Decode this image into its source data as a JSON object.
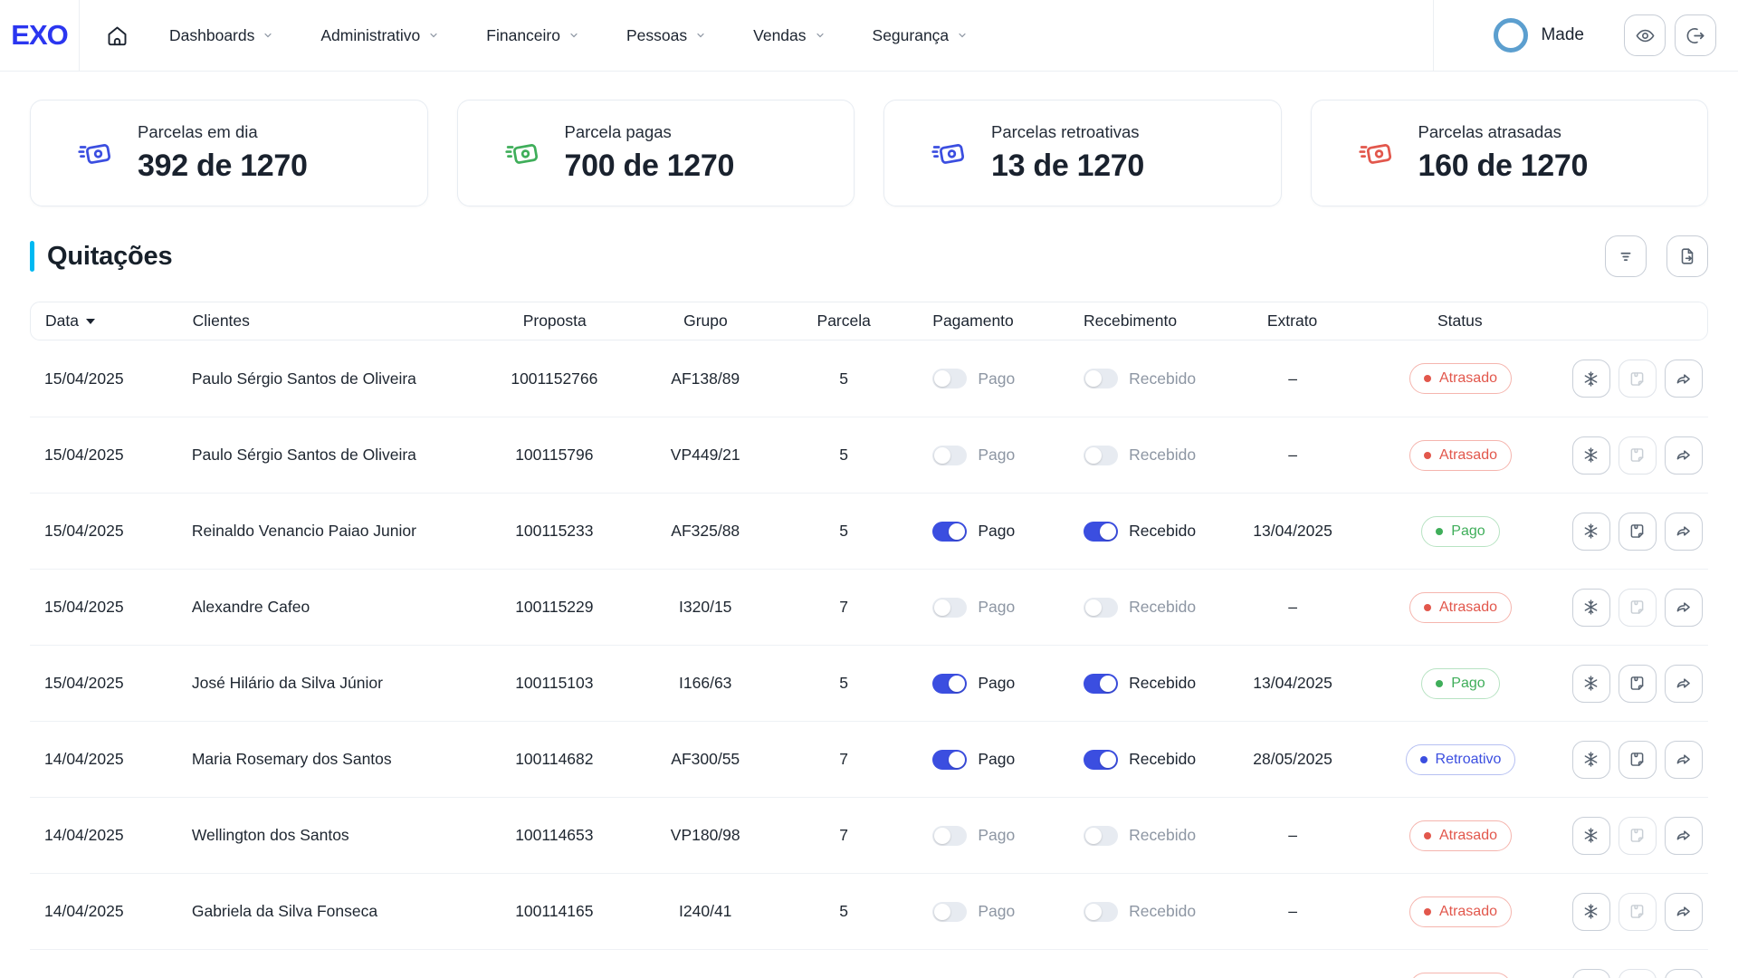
{
  "nav": {
    "logo": "EXO",
    "items": [
      {
        "label": "Dashboards"
      },
      {
        "label": "Administrativo"
      },
      {
        "label": "Financeiro"
      },
      {
        "label": "Pessoas"
      },
      {
        "label": "Vendas"
      },
      {
        "label": "Segurança"
      }
    ],
    "user": {
      "name": "Made"
    }
  },
  "cards": [
    {
      "label": "Parcelas em dia",
      "value": "392 de 1270",
      "color": "#3b4ee0"
    },
    {
      "label": "Parcela pagas",
      "value": "700 de 1270",
      "color": "#3fae5a"
    },
    {
      "label": "Parcelas retroativas",
      "value": "13 de 1270",
      "color": "#3b4ee0"
    },
    {
      "label": "Parcelas atrasadas",
      "value": "160 de 1270",
      "color": "#e2574c"
    }
  ],
  "section": {
    "title": "Quitações"
  },
  "table": {
    "columns": [
      "Data",
      "Clientes",
      "Proposta",
      "Grupo",
      "Parcela",
      "Pagamento",
      "Recebimento",
      "Extrato",
      "Status"
    ],
    "toggle_labels": {
      "pago": "Pago",
      "recebido": "Recebido"
    },
    "status_styles": {
      "Atrasado": {
        "text": "#e2574c",
        "border": "#f5b5ae"
      },
      "Pago": {
        "text": "#3fae5a",
        "border": "#b8e3c3"
      },
      "Retroativo": {
        "text": "#3b4ee0",
        "border": "#b6c0f2"
      }
    },
    "rows": [
      {
        "date": "15/04/2025",
        "client": "Paulo Sérgio Santos de Oliveira",
        "proposal": "1001152766",
        "group": "AF138/89",
        "installment": "5",
        "paid": false,
        "received": false,
        "extract": "–",
        "status": "Atrasado"
      },
      {
        "date": "15/04/2025",
        "client": "Paulo Sérgio Santos de Oliveira",
        "proposal": "100115796",
        "group": "VP449/21",
        "installment": "5",
        "paid": false,
        "received": false,
        "extract": "–",
        "status": "Atrasado"
      },
      {
        "date": "15/04/2025",
        "client": "Reinaldo Venancio Paiao Junior",
        "proposal": "100115233",
        "group": "AF325/88",
        "installment": "5",
        "paid": true,
        "received": true,
        "extract": "13/04/2025",
        "status": "Pago"
      },
      {
        "date": "15/04/2025",
        "client": "Alexandre Cafeo",
        "proposal": "100115229",
        "group": "I320/15",
        "installment": "7",
        "paid": false,
        "received": false,
        "extract": "–",
        "status": "Atrasado"
      },
      {
        "date": "15/04/2025",
        "client": "José Hilário da Silva Júnior",
        "proposal": "100115103",
        "group": "I166/63",
        "installment": "5",
        "paid": true,
        "received": true,
        "extract": "13/04/2025",
        "status": "Pago"
      },
      {
        "date": "14/04/2025",
        "client": "Maria Rosemary dos Santos",
        "proposal": "100114682",
        "group": "AF300/55",
        "installment": "7",
        "paid": true,
        "received": true,
        "extract": "28/05/2025",
        "status": "Retroativo"
      },
      {
        "date": "14/04/2025",
        "client": "Wellington dos Santos",
        "proposal": "100114653",
        "group": "VP180/98",
        "installment": "7",
        "paid": false,
        "received": false,
        "extract": "–",
        "status": "Atrasado"
      },
      {
        "date": "14/04/2025",
        "client": "Gabriela da Silva Fonseca",
        "proposal": "100114165",
        "group": "I240/41",
        "installment": "5",
        "paid": false,
        "received": false,
        "extract": "–",
        "status": "Atrasado"
      },
      {
        "date": "",
        "client": "",
        "proposal": "",
        "group": "",
        "installment": "",
        "paid": false,
        "received": false,
        "extract": "",
        "status": "Atrasado",
        "partial": true
      }
    ]
  }
}
